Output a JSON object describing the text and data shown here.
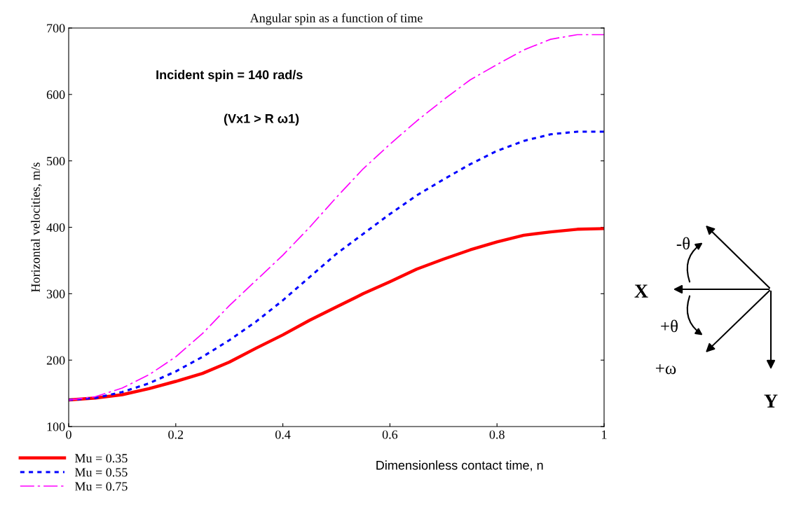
{
  "chart_data": {
    "type": "line",
    "title": "Angular spin as a function of time",
    "xlabel": "Dimensionless contact time, n",
    "ylabel": "Horizontal velocities, m/s",
    "x": [
      0,
      0.05,
      0.1,
      0.15,
      0.2,
      0.25,
      0.3,
      0.35,
      0.4,
      0.45,
      0.5,
      0.55,
      0.6,
      0.65,
      0.7,
      0.75,
      0.8,
      0.85,
      0.9,
      0.95,
      1
    ],
    "series": [
      {
        "name": "Mu = 0.35",
        "color": "#ff0000",
        "line_style": "solid",
        "values": [
          140,
          143,
          148,
          157,
          168,
          180,
          197,
          218,
          238,
          260,
          280,
          300,
          318,
          337,
          352,
          366,
          378,
          388,
          393,
          397,
          398
        ]
      },
      {
        "name": "Mu = 0.55",
        "color": "#0000ff",
        "line_style": "dotted",
        "values": [
          140,
          143,
          152,
          165,
          183,
          205,
          230,
          258,
          290,
          325,
          360,
          390,
          420,
          448,
          472,
          495,
          515,
          530,
          540,
          544,
          544
        ]
      },
      {
        "name": "Mu = 0.75",
        "color": "#ff00ff",
        "line_style": "dashed",
        "values": [
          140,
          145,
          158,
          178,
          205,
          240,
          282,
          320,
          358,
          400,
          445,
          488,
          525,
          560,
          592,
          622,
          645,
          667,
          683,
          690,
          690
        ]
      }
    ],
    "xlim": [
      0,
      1
    ],
    "xticks": [
      0,
      0.2,
      0.4,
      0.6,
      0.8,
      1
    ],
    "ylim": [
      100,
      700
    ],
    "yticks": [
      100,
      200,
      300,
      400,
      500,
      600,
      700
    ],
    "grid": false,
    "legend": "bottom left",
    "marker": "none",
    "annotations": [
      "Incident spin = 140 rad/s",
      "(Vx1 > R ω1)",
      "X",
      "Y",
      "-θ",
      "+θ",
      "+ω"
    ]
  }
}
